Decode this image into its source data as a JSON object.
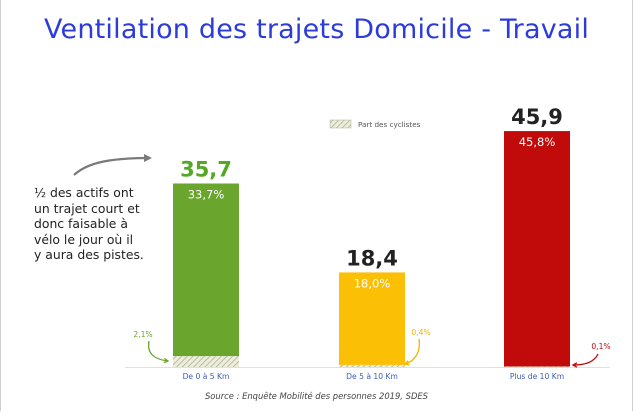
{
  "title": "Ventilation des trajets Domicile - Travail",
  "annotation": "½ des actifs ont un trajet court et donc faisable à vélo le jour où il y aura des pistes.",
  "source": "Source : Enquête Mobilité des personnes 2019, SDES",
  "chart_data": {
    "type": "bar",
    "title": "Ventilation des trajets Domicile - Travail",
    "xlabel": "",
    "ylabel": "",
    "ylim": [
      0,
      50
    ],
    "grid": false,
    "legend": {
      "placement": "top-center",
      "entries": [
        "Part des cyclistes"
      ]
    },
    "categories": [
      "De 0 à 5 Km",
      "De 5 à 10 Km",
      "Plus de 10 Km"
    ],
    "values": [
      35.7,
      18.4,
      45.9
    ],
    "value_labels": [
      "35,7",
      "18,4",
      "45,9"
    ],
    "colors": [
      "#6aa52e",
      "#fbbf06",
      "#c10a0a"
    ],
    "value_label_colors": [
      "#55a823",
      "#222222",
      "#222222"
    ],
    "series": [
      {
        "name": "",
        "values": [
          33.7,
          18.0,
          45.8
        ],
        "labels": [
          "33,7%",
          "18,0%",
          "45,8%"
        ]
      },
      {
        "name": "Part des cyclistes",
        "values": [
          2.1,
          0.4,
          0.1
        ],
        "labels": [
          "2,1%",
          "0,4%",
          "0,1%"
        ]
      }
    ],
    "arrow_colors": [
      "#6aa52e",
      "#f0b400",
      "#c10a0a"
    ]
  }
}
